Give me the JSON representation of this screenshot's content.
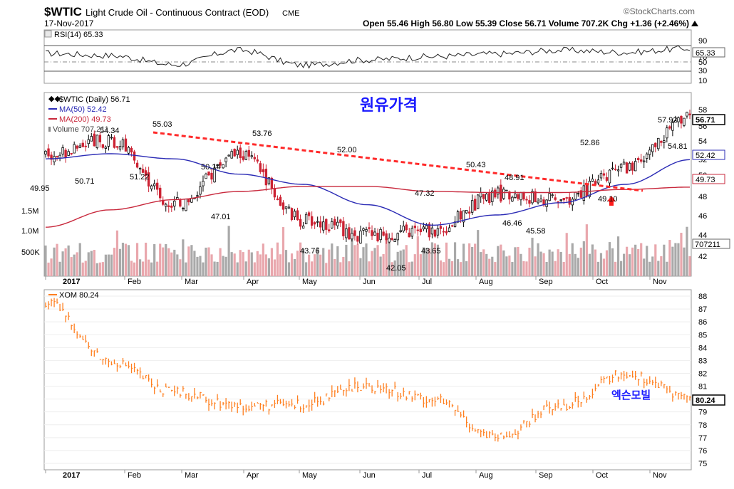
{
  "header": {
    "symbol": "$WTIC",
    "name": "Light Crude Oil - Continuous Contract (EOD)",
    "exchange": "CME",
    "watermark": "©StockCharts.com",
    "date": "17-Nov-2017",
    "ohlc": "Open 55.46 High 56.80 Low 55.39 Close 56.71 Volume 707.2K Chg +1.36 (+2.46%)",
    "chg_icon": "up-arrow-icon"
  },
  "rsi": {
    "title": "RSI(14) 65.33",
    "value_label": "65.33",
    "ticks": [
      "90",
      "70",
      "50",
      "30",
      "10"
    ]
  },
  "price": {
    "title": "$WTIC (Daily) 56.71",
    "ma50_label": "MA(50) 52.42",
    "ma200_label": "MA(200) 49.73",
    "volume_label": "Volume 707,211",
    "annotation_kr": "원유가격",
    "ticks": [
      "58",
      "56",
      "54",
      "52",
      "50",
      "48",
      "46",
      "44",
      "42"
    ],
    "vol_ticks": [
      "1.5M",
      "1.0M",
      "500K"
    ],
    "last_close": "56.71",
    "ma50_value": "52.42",
    "ma200_value": "49.73",
    "volume_value": "707211",
    "colors": {
      "ma50": "#2b2bb5",
      "ma200": "#c8283c",
      "trend": "#ff2a2a",
      "up": "#000000",
      "down": "#cc2233",
      "vol_up": "#a9a9a9",
      "vol_down": "#e9a7ad"
    }
  },
  "xom": {
    "title": "XOM 80.24",
    "annotation_kr": "엑슨모빌",
    "last_value": "80.24",
    "ticks": [
      "88",
      "87",
      "86",
      "85",
      "84",
      "83",
      "82",
      "81",
      "80",
      "79",
      "78",
      "77",
      "76",
      "75"
    ],
    "color": "#ff7f1f"
  },
  "months": [
    "2017",
    "Feb",
    "Mar",
    "Apr",
    "May",
    "Jun",
    "Jul",
    "Aug",
    "Sep",
    "Oct",
    "Nov"
  ],
  "chart_data": [
    {
      "type": "line",
      "title": "RSI(14)",
      "x": [
        "2017-01",
        "2017-02",
        "2017-03",
        "2017-04",
        "2017-05",
        "2017-06",
        "2017-07",
        "2017-08",
        "2017-09",
        "2017-10",
        "2017-11"
      ],
      "series": [
        {
          "name": "RSI(14)",
          "values": [
            56,
            52,
            35,
            62,
            34,
            44,
            50,
            55,
            62,
            58,
            65.33
          ]
        }
      ],
      "ylim": [
        0,
        100
      ]
    },
    {
      "type": "line",
      "title": "$WTIC (Daily)",
      "x": [
        "2017-01",
        "2017-02",
        "2017-03",
        "2017-04",
        "2017-05",
        "2017-06",
        "2017-07",
        "2017-08",
        "2017-09",
        "2017-10",
        "2017-11"
      ],
      "series": [
        {
          "name": "$WTIC",
          "values": [
            53.0,
            54.3,
            48.0,
            53.0,
            46.5,
            45.0,
            45.5,
            49.0,
            48.5,
            51.5,
            56.71
          ]
        },
        {
          "name": "MA(50)",
          "values": [
            52.5,
            53.0,
            52.5,
            51.0,
            50.0,
            48.0,
            46.0,
            47.0,
            48.2,
            50.0,
            52.42
          ]
        },
        {
          "name": "MA(200)",
          "values": [
            45.8,
            47.5,
            48.5,
            49.3,
            49.8,
            49.8,
            49.3,
            49.2,
            49.2,
            49.5,
            49.73
          ]
        }
      ],
      "annotations": [
        {
          "label": "49.95",
          "value": 49.95
        },
        {
          "label": "50.71",
          "value": 50.71
        },
        {
          "label": "54.34",
          "value": 54.34
        },
        {
          "label": "51.22",
          "value": 51.22
        },
        {
          "label": "55.03",
          "value": 55.03
        },
        {
          "label": "50.14",
          "value": 50.14
        },
        {
          "label": "47.01",
          "value": 47.01
        },
        {
          "label": "53.76",
          "value": 53.76
        },
        {
          "label": "43.76",
          "value": 43.76
        },
        {
          "label": "52.00",
          "value": 52.0
        },
        {
          "label": "42.05",
          "value": 42.05
        },
        {
          "label": "43.65",
          "value": 43.65
        },
        {
          "label": "47.32",
          "value": 47.32
        },
        {
          "label": "50.43",
          "value": 50.43
        },
        {
          "label": "48.91",
          "value": 48.91
        },
        {
          "label": "46.46",
          "value": 46.46
        },
        {
          "label": "45.58",
          "value": 45.58
        },
        {
          "label": "52.86",
          "value": 52.86
        },
        {
          "label": "49.10",
          "value": 49.1
        },
        {
          "label": "57.92",
          "value": 57.92
        },
        {
          "label": "54.81",
          "value": 54.81
        }
      ],
      "ylim": [
        41,
        59
      ]
    },
    {
      "type": "line",
      "title": "XOM",
      "x": [
        "2017-01",
        "2017-02",
        "2017-03",
        "2017-04",
        "2017-05",
        "2017-06",
        "2017-07",
        "2017-08",
        "2017-09",
        "2017-10",
        "2017-11"
      ],
      "series": [
        {
          "name": "XOM",
          "values": [
            87.5,
            83.0,
            80.5,
            79.5,
            79.6,
            81.0,
            80.0,
            77.0,
            79.5,
            82.0,
            80.24
          ]
        }
      ],
      "ylim": [
        74.5,
        88.5
      ]
    }
  ]
}
